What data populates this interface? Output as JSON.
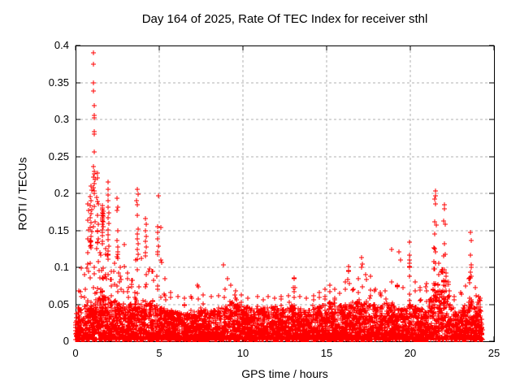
{
  "chart_data": {
    "type": "scatter",
    "title": "Day 164 of 2025, Rate Of TEC Index for receiver sthl",
    "xlabel": "GPS time / hours",
    "ylabel": "ROTI / TECUs",
    "xlim": [
      0,
      25
    ],
    "ylim": [
      0,
      0.4
    ],
    "xticks": [
      {
        "v": 0,
        "label": "0"
      },
      {
        "v": 5,
        "label": "5"
      },
      {
        "v": 10,
        "label": "10"
      },
      {
        "v": 15,
        "label": "15"
      },
      {
        "v": 20,
        "label": "20"
      },
      {
        "v": 25,
        "label": "25"
      }
    ],
    "yticks": [
      {
        "v": 0,
        "label": "0"
      },
      {
        "v": 0.05,
        "label": "0.05"
      },
      {
        "v": 0.1,
        "label": "0.1"
      },
      {
        "v": 0.15,
        "label": "0.15"
      },
      {
        "v": 0.2,
        "label": "0.2"
      },
      {
        "v": 0.25,
        "label": "0.25"
      },
      {
        "v": 0.3,
        "label": "0.3"
      },
      {
        "v": 0.35,
        "label": "0.35"
      },
      {
        "v": 0.4,
        "label": "0.4"
      }
    ],
    "grid": true,
    "legend": "none",
    "marker": "plus",
    "marker_color": "#ff0000",
    "grid_color": "#b0b0b0",
    "axis_color": "#000000",
    "background_color": "#ffffff",
    "x_data_range": [
      0,
      24.3
    ],
    "seed": 164,
    "n_baseline_points": 5200,
    "baseline_envelope": [
      [
        0,
        0.04
      ],
      [
        0.5,
        0.045
      ],
      [
        1.0,
        0.052
      ],
      [
        1.5,
        0.06
      ],
      [
        1.9,
        0.058
      ],
      [
        2.3,
        0.05
      ],
      [
        2.8,
        0.048
      ],
      [
        3.3,
        0.05
      ],
      [
        3.8,
        0.055
      ],
      [
        4.3,
        0.052
      ],
      [
        4.8,
        0.045
      ],
      [
        5.3,
        0.042
      ],
      [
        6.0,
        0.038
      ],
      [
        6.8,
        0.036
      ],
      [
        7.5,
        0.045
      ],
      [
        8.0,
        0.038
      ],
      [
        8.8,
        0.045
      ],
      [
        9.4,
        0.052
      ],
      [
        10.0,
        0.046
      ],
      [
        10.6,
        0.042
      ],
      [
        11.2,
        0.043
      ],
      [
        11.8,
        0.045
      ],
      [
        12.4,
        0.042
      ],
      [
        13.0,
        0.05
      ],
      [
        13.6,
        0.04
      ],
      [
        14.2,
        0.043
      ],
      [
        14.8,
        0.048
      ],
      [
        15.3,
        0.052
      ],
      [
        15.9,
        0.046
      ],
      [
        16.4,
        0.05
      ],
      [
        17.0,
        0.055
      ],
      [
        17.6,
        0.05
      ],
      [
        18.1,
        0.046
      ],
      [
        18.6,
        0.05
      ],
      [
        19.1,
        0.046
      ],
      [
        19.6,
        0.044
      ],
      [
        20.1,
        0.05
      ],
      [
        20.6,
        0.042
      ],
      [
        21.0,
        0.048
      ],
      [
        21.3,
        0.065
      ],
      [
        21.6,
        0.08
      ],
      [
        21.9,
        0.1
      ],
      [
        22.15,
        0.09
      ],
      [
        22.4,
        0.048
      ],
      [
        22.7,
        0.035
      ],
      [
        23.0,
        0.04
      ],
      [
        23.3,
        0.048
      ],
      [
        23.55,
        0.06
      ],
      [
        23.8,
        0.042
      ],
      [
        24.0,
        0.05
      ],
      [
        24.15,
        0.06
      ],
      [
        24.25,
        0.04
      ],
      [
        24.3,
        0.015
      ]
    ],
    "spikes": [
      {
        "x": 0.18,
        "ymax": 0.068,
        "n": 5
      },
      {
        "x": 0.35,
        "ymax": 0.099,
        "n": 7
      },
      {
        "x": 0.55,
        "ymax": 0.09,
        "n": 6
      },
      {
        "x": 0.72,
        "ymax": 0.12,
        "n": 8
      },
      {
        "x": 0.9,
        "ymax": 0.135,
        "n": 10
      },
      {
        "x": 1.1,
        "ymax": 0.2,
        "n": 14
      },
      {
        "x": 1.3,
        "ymax": 0.15,
        "n": 10
      },
      {
        "x": 1.48,
        "ymax": 0.12,
        "n": 8
      },
      {
        "x": 1.62,
        "ymax": 0.135,
        "n": 10
      },
      {
        "x": 1.78,
        "ymax": 0.125,
        "n": 10
      },
      {
        "x": 1.95,
        "ymax": 0.118,
        "n": 8
      },
      {
        "x": 2.12,
        "ymax": 0.095,
        "n": 7
      },
      {
        "x": 2.32,
        "ymax": 0.105,
        "n": 7
      },
      {
        "x": 2.5,
        "ymax": 0.118,
        "n": 8
      },
      {
        "x": 2.68,
        "ymax": 0.1,
        "n": 6
      },
      {
        "x": 2.9,
        "ymax": 0.131,
        "n": 8
      },
      {
        "x": 3.12,
        "ymax": 0.092,
        "n": 6
      },
      {
        "x": 3.35,
        "ymax": 0.082,
        "n": 6
      },
      {
        "x": 3.58,
        "ymax": 0.11,
        "n": 7
      },
      {
        "x": 3.72,
        "ymax": 0.118,
        "n": 8
      },
      {
        "x": 3.95,
        "ymax": 0.112,
        "n": 7
      },
      {
        "x": 4.18,
        "ymax": 0.115,
        "n": 7
      },
      {
        "x": 4.4,
        "ymax": 0.098,
        "n": 6
      },
      {
        "x": 4.62,
        "ymax": 0.095,
        "n": 6
      },
      {
        "x": 4.88,
        "ymax": 0.118,
        "n": 7
      },
      {
        "x": 5.1,
        "ymax": 0.11,
        "n": 6
      },
      {
        "x": 5.35,
        "ymax": 0.085,
        "n": 6
      },
      {
        "x": 5.7,
        "ymax": 0.066,
        "n": 5
      },
      {
        "x": 6.1,
        "ymax": 0.06,
        "n": 5
      },
      {
        "x": 6.5,
        "ymax": 0.058,
        "n": 4
      },
      {
        "x": 6.9,
        "ymax": 0.06,
        "n": 4
      },
      {
        "x": 7.3,
        "ymax": 0.076,
        "n": 5
      },
      {
        "x": 7.6,
        "ymax": 0.063,
        "n": 5
      },
      {
        "x": 8.1,
        "ymax": 0.06,
        "n": 4
      },
      {
        "x": 8.55,
        "ymax": 0.062,
        "n": 4
      },
      {
        "x": 8.95,
        "ymax": 0.07,
        "n": 5
      },
      {
        "x": 9.25,
        "ymax": 0.076,
        "n": 6
      },
      {
        "x": 9.55,
        "ymax": 0.068,
        "n": 5
      },
      {
        "x": 9.9,
        "ymax": 0.063,
        "n": 5
      },
      {
        "x": 10.3,
        "ymax": 0.058,
        "n": 4
      },
      {
        "x": 10.85,
        "ymax": 0.06,
        "n": 4
      },
      {
        "x": 11.2,
        "ymax": 0.056,
        "n": 4
      },
      {
        "x": 11.5,
        "ymax": 0.06,
        "n": 4
      },
      {
        "x": 11.9,
        "ymax": 0.058,
        "n": 4
      },
      {
        "x": 12.3,
        "ymax": 0.06,
        "n": 4
      },
      {
        "x": 12.7,
        "ymax": 0.062,
        "n": 4
      },
      {
        "x": 13.05,
        "ymax": 0.086,
        "n": 7
      },
      {
        "x": 13.4,
        "ymax": 0.06,
        "n": 4
      },
      {
        "x": 13.8,
        "ymax": 0.058,
        "n": 4
      },
      {
        "x": 14.2,
        "ymax": 0.062,
        "n": 4
      },
      {
        "x": 14.55,
        "ymax": 0.066,
        "n": 5
      },
      {
        "x": 14.9,
        "ymax": 0.07,
        "n": 5
      },
      {
        "x": 15.2,
        "ymax": 0.076,
        "n": 6
      },
      {
        "x": 15.5,
        "ymax": 0.07,
        "n": 5
      },
      {
        "x": 15.8,
        "ymax": 0.065,
        "n": 4
      },
      {
        "x": 16.1,
        "ymax": 0.08,
        "n": 5
      },
      {
        "x": 16.3,
        "ymax": 0.096,
        "n": 7
      },
      {
        "x": 16.6,
        "ymax": 0.07,
        "n": 4
      },
      {
        "x": 16.9,
        "ymax": 0.085,
        "n": 5
      },
      {
        "x": 17.1,
        "ymax": 0.1,
        "n": 7
      },
      {
        "x": 17.35,
        "ymax": 0.09,
        "n": 5
      },
      {
        "x": 17.6,
        "ymax": 0.088,
        "n": 6
      },
      {
        "x": 17.9,
        "ymax": 0.07,
        "n": 4
      },
      {
        "x": 18.2,
        "ymax": 0.066,
        "n": 4
      },
      {
        "x": 18.5,
        "ymax": 0.068,
        "n": 5
      },
      {
        "x": 18.9,
        "ymax": 0.08,
        "n": 5
      },
      {
        "x": 19.2,
        "ymax": 0.076,
        "n": 4
      },
      {
        "x": 19.55,
        "ymax": 0.072,
        "n": 4
      },
      {
        "x": 19.95,
        "ymax": 0.105,
        "n": 7
      },
      {
        "x": 20.3,
        "ymax": 0.08,
        "n": 5
      },
      {
        "x": 20.6,
        "ymax": 0.072,
        "n": 4
      },
      {
        "x": 20.95,
        "ymax": 0.078,
        "n": 5
      },
      {
        "x": 21.45,
        "ymax": 0.125,
        "n": 12
      },
      {
        "x": 21.7,
        "ymax": 0.105,
        "n": 9
      },
      {
        "x": 22.0,
        "ymax": 0.115,
        "n": 12
      },
      {
        "x": 22.3,
        "ymax": 0.08,
        "n": 5
      },
      {
        "x": 22.6,
        "ymax": 0.06,
        "n": 4
      },
      {
        "x": 23.0,
        "ymax": 0.066,
        "n": 4
      },
      {
        "x": 23.3,
        "ymax": 0.075,
        "n": 5
      },
      {
        "x": 23.55,
        "ymax": 0.086,
        "n": 6
      },
      {
        "x": 23.9,
        "ymax": 0.072,
        "n": 5
      },
      {
        "x": 24.1,
        "ymax": 0.06,
        "n": 4
      }
    ],
    "high_points": [
      [
        1.08,
        0.39
      ],
      [
        1.08,
        0.375
      ],
      [
        1.09,
        0.35
      ],
      [
        1.09,
        0.338
      ],
      [
        1.1,
        0.319
      ],
      [
        1.1,
        0.306
      ],
      [
        1.11,
        0.302
      ],
      [
        1.1,
        0.284
      ],
      [
        1.11,
        0.28
      ],
      [
        1.12,
        0.256
      ],
      [
        1.05,
        0.236
      ],
      [
        1.1,
        0.23
      ],
      [
        1.14,
        0.226
      ],
      [
        1.07,
        0.222
      ],
      [
        1.16,
        0.219
      ],
      [
        1.12,
        0.213
      ],
      [
        1.09,
        0.208
      ],
      [
        1.13,
        0.203
      ],
      [
        0.9,
        0.21
      ],
      [
        0.95,
        0.204
      ],
      [
        0.88,
        0.196
      ],
      [
        0.93,
        0.19
      ],
      [
        0.85,
        0.184
      ],
      [
        0.97,
        0.178
      ],
      [
        0.9,
        0.172
      ],
      [
        0.86,
        0.167
      ],
      [
        0.92,
        0.16
      ],
      [
        0.88,
        0.154
      ],
      [
        0.95,
        0.148
      ],
      [
        0.91,
        0.142
      ],
      [
        0.87,
        0.136
      ],
      [
        0.93,
        0.13
      ],
      [
        0.74,
        0.186
      ],
      [
        0.76,
        0.177
      ],
      [
        0.73,
        0.164
      ],
      [
        0.77,
        0.151
      ],
      [
        0.75,
        0.139
      ],
      [
        1.3,
        0.228
      ],
      [
        1.33,
        0.221
      ],
      [
        1.27,
        0.195
      ],
      [
        1.31,
        0.189
      ],
      [
        1.36,
        0.186
      ],
      [
        1.29,
        0.17
      ],
      [
        1.34,
        0.158
      ],
      [
        1.31,
        0.148
      ],
      [
        1.38,
        0.139
      ],
      [
        1.58,
        0.183
      ],
      [
        1.62,
        0.18
      ],
      [
        1.6,
        0.178
      ],
      [
        1.64,
        0.176
      ],
      [
        1.59,
        0.174
      ],
      [
        1.63,
        0.172
      ],
      [
        1.61,
        0.17
      ],
      [
        1.65,
        0.169
      ],
      [
        1.6,
        0.167
      ],
      [
        1.62,
        0.165
      ],
      [
        1.58,
        0.163
      ],
      [
        1.66,
        0.161
      ],
      [
        1.61,
        0.158
      ],
      [
        1.64,
        0.155
      ],
      [
        1.59,
        0.151
      ],
      [
        1.62,
        0.147
      ],
      [
        1.6,
        0.143
      ],
      [
        1.93,
        0.215
      ],
      [
        1.95,
        0.205
      ],
      [
        1.92,
        0.198
      ],
      [
        1.96,
        0.19
      ],
      [
        1.94,
        0.181
      ],
      [
        1.97,
        0.174
      ],
      [
        1.95,
        0.167
      ],
      [
        1.98,
        0.159
      ],
      [
        1.93,
        0.151
      ],
      [
        1.96,
        0.144
      ],
      [
        1.94,
        0.137
      ],
      [
        1.97,
        0.129
      ],
      [
        1.95,
        0.122
      ],
      [
        2.46,
        0.193
      ],
      [
        2.5,
        0.181
      ],
      [
        2.48,
        0.177
      ],
      [
        2.52,
        0.15
      ],
      [
        2.47,
        0.136
      ],
      [
        2.53,
        0.127
      ],
      [
        2.5,
        0.121
      ],
      [
        3.7,
        0.205
      ],
      [
        3.74,
        0.199
      ],
      [
        3.66,
        0.19
      ],
      [
        3.71,
        0.185
      ],
      [
        3.68,
        0.17
      ],
      [
        3.73,
        0.152
      ],
      [
        3.7,
        0.145
      ],
      [
        3.67,
        0.139
      ],
      [
        3.74,
        0.132
      ],
      [
        3.69,
        0.124
      ],
      [
        4.16,
        0.166
      ],
      [
        4.21,
        0.158
      ],
      [
        4.18,
        0.15
      ],
      [
        4.23,
        0.142
      ],
      [
        4.17,
        0.135
      ],
      [
        4.22,
        0.127
      ],
      [
        4.19,
        0.12
      ],
      [
        4.95,
        0.197
      ],
      [
        4.9,
        0.155
      ],
      [
        4.92,
        0.147
      ],
      [
        4.88,
        0.139
      ],
      [
        4.93,
        0.129
      ],
      [
        4.9,
        0.121
      ],
      [
        5.12,
        0.154
      ],
      [
        8.85,
        0.103
      ],
      [
        9.08,
        0.085
      ],
      [
        13.05,
        0.085
      ],
      [
        16.3,
        0.101
      ],
      [
        16.33,
        0.094
      ],
      [
        17.1,
        0.113
      ],
      [
        17.13,
        0.104
      ],
      [
        18.9,
        0.124
      ],
      [
        19.3,
        0.121
      ],
      [
        19.42,
        0.11
      ],
      [
        19.95,
        0.134
      ],
      [
        19.97,
        0.116
      ],
      [
        19.93,
        0.11
      ],
      [
        19.96,
        0.101
      ],
      [
        21.5,
        0.203
      ],
      [
        21.52,
        0.197
      ],
      [
        21.47,
        0.192
      ],
      [
        21.49,
        0.186
      ],
      [
        21.46,
        0.162
      ],
      [
        21.53,
        0.157
      ],
      [
        21.48,
        0.145
      ],
      [
        21.42,
        0.126
      ],
      [
        21.51,
        0.121
      ],
      [
        22.02,
        0.185
      ],
      [
        22.06,
        0.179
      ],
      [
        22.0,
        0.163
      ],
      [
        22.07,
        0.158
      ],
      [
        22.03,
        0.132
      ],
      [
        22.1,
        0.118
      ],
      [
        23.6,
        0.147
      ],
      [
        23.63,
        0.136
      ],
      [
        23.58,
        0.116
      ],
      [
        23.62,
        0.103
      ],
      [
        23.65,
        0.1
      ],
      [
        23.6,
        0.093
      ],
      [
        23.64,
        0.088
      ],
      [
        23.61,
        0.086
      ]
    ]
  }
}
